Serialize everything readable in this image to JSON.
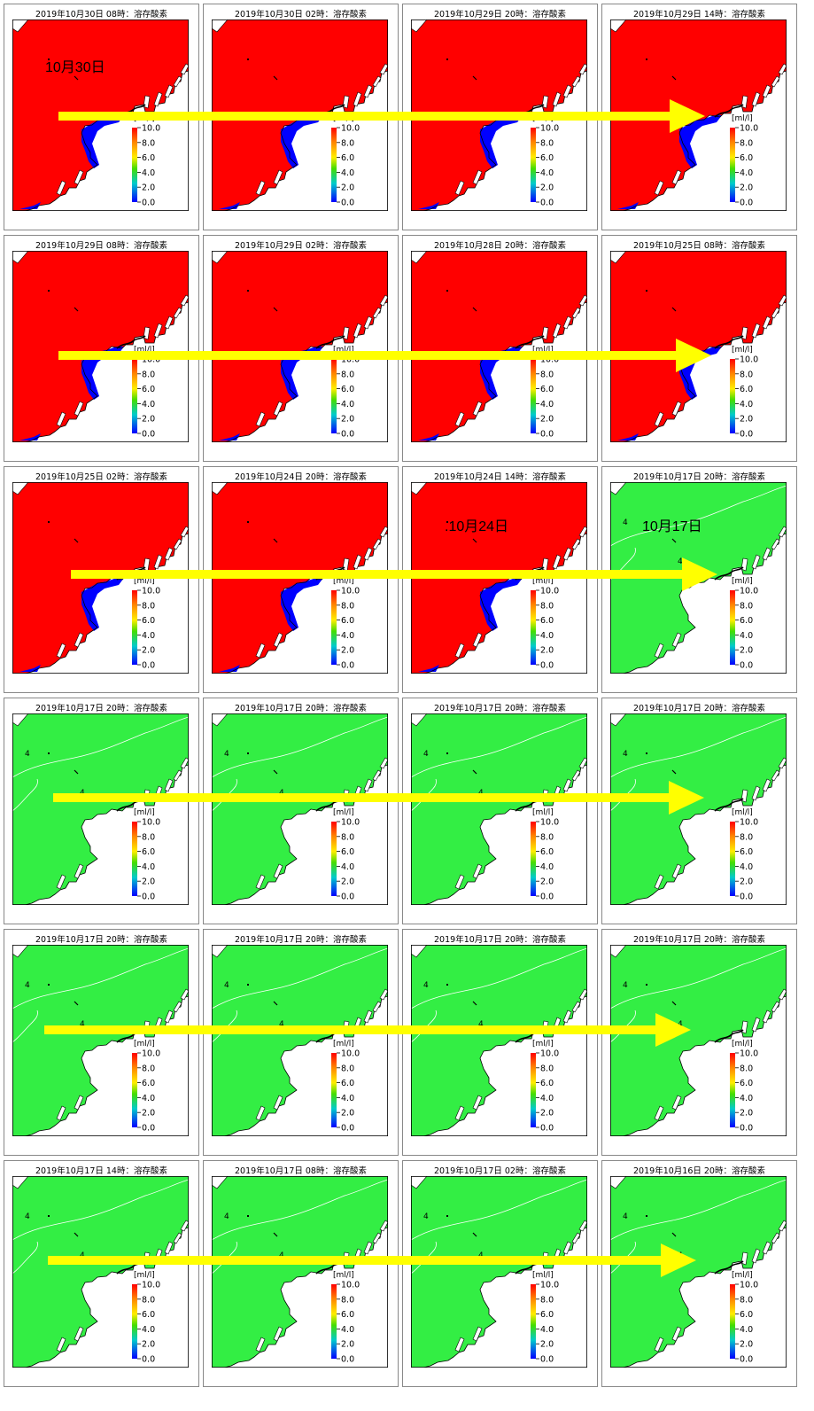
{
  "panel_type": "溶存酸素",
  "unit": "[ml/l]",
  "colorbar_ticks": [
    "10.0",
    "8.0",
    "6.0",
    "4.0",
    "2.0",
    "0.0"
  ],
  "contour_label": "4",
  "colors": {
    "low_oxygen_red": "#ff0000",
    "anoxic_blue": "#0000ff",
    "normal_green": "#33ee44",
    "land": "#ffffff",
    "arrow": "#ffff00"
  },
  "panels": [
    {
      "title": "2019年10月30日 08時：溶存酸素",
      "state": "red"
    },
    {
      "title": "2019年10月30日 02時：溶存酸素",
      "state": "red"
    },
    {
      "title": "2019年10月29日 20時：溶存酸素",
      "state": "red"
    },
    {
      "title": "2019年10月29日 14時：溶存酸素",
      "state": "red"
    },
    {
      "title": "2019年10月29日 08時：溶存酸素",
      "state": "red"
    },
    {
      "title": "2019年10月29日 02時：溶存酸素",
      "state": "red"
    },
    {
      "title": "2019年10月28日 20時：溶存酸素",
      "state": "red"
    },
    {
      "title": "2019年10月25日 08時：溶存酸素",
      "state": "red"
    },
    {
      "title": "2019年10月25日 02時：溶存酸素",
      "state": "red"
    },
    {
      "title": "2019年10月24日 20時：溶存酸素",
      "state": "red"
    },
    {
      "title": "2019年10月24日 14時：溶存酸素",
      "state": "red"
    },
    {
      "title": "2019年10月17日 20時：溶存酸素",
      "state": "green"
    },
    {
      "title": "2019年10月17日 20時：溶存酸素",
      "state": "green"
    },
    {
      "title": "2019年10月17日 20時：溶存酸素",
      "state": "green"
    },
    {
      "title": "2019年10月17日 20時：溶存酸素",
      "state": "green"
    },
    {
      "title": "2019年10月17日 20時：溶存酸素",
      "state": "green"
    },
    {
      "title": "2019年10月17日 20時：溶存酸素",
      "state": "green"
    },
    {
      "title": "2019年10月17日 20時：溶存酸素",
      "state": "green"
    },
    {
      "title": "2019年10月17日 20時：溶存酸素",
      "state": "green"
    },
    {
      "title": "2019年10月17日 20時：溶存酸素",
      "state": "green"
    },
    {
      "title": "2019年10月17日 14時：溶存酸素",
      "state": "green"
    },
    {
      "title": "2019年10月17日 08時：溶存酸素",
      "state": "green"
    },
    {
      "title": "2019年10月17日 02時：溶存酸素",
      "state": "green"
    },
    {
      "title": "2019年10月16日 20時：溶存酸素",
      "state": "green"
    }
  ],
  "annotations": {
    "oct30": "10月30日",
    "oct24": ".10月24日",
    "oct17": "10月17日"
  }
}
